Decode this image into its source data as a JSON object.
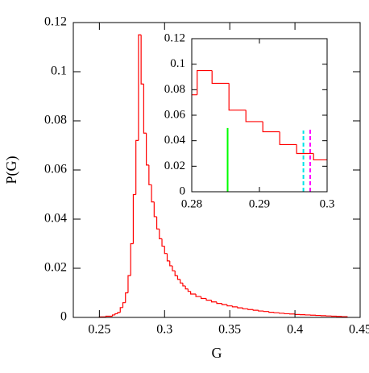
{
  "chart_data": [
    {
      "type": "histogram",
      "x_label": "G",
      "y_label": "P(G)",
      "color": "#ff0000",
      "xlim": [
        0.23,
        0.45
      ],
      "ylim": [
        0,
        0.12
      ],
      "xticks": [
        0.25,
        0.3,
        0.35,
        0.4,
        0.45
      ],
      "yticks": [
        0,
        0.02,
        0.04,
        0.06,
        0.08,
        0.1,
        0.12
      ],
      "bins": [
        0.25,
        0.255,
        0.26,
        0.262,
        0.264,
        0.266,
        0.268,
        0.27,
        0.272,
        0.274,
        0.276,
        0.278,
        0.28,
        0.282,
        0.284,
        0.286,
        0.288,
        0.29,
        0.292,
        0.294,
        0.296,
        0.298,
        0.3,
        0.302,
        0.304,
        0.306,
        0.308,
        0.31,
        0.312,
        0.314,
        0.316,
        0.318,
        0.32,
        0.324,
        0.328,
        0.332,
        0.336,
        0.34,
        0.344,
        0.348,
        0.352,
        0.356,
        0.36,
        0.364,
        0.368,
        0.372,
        0.376,
        0.38,
        0.384,
        0.388,
        0.392,
        0.396,
        0.4,
        0.404,
        0.408,
        0.412,
        0.416,
        0.42,
        0.424,
        0.428,
        0.432,
        0.436,
        0.44
      ],
      "values": [
        0.0002,
        0.0005,
        0.001,
        0.0015,
        0.002,
        0.004,
        0.006,
        0.01,
        0.017,
        0.03,
        0.05,
        0.072,
        0.115,
        0.095,
        0.075,
        0.062,
        0.054,
        0.047,
        0.041,
        0.036,
        0.032,
        0.029,
        0.026,
        0.023,
        0.021,
        0.019,
        0.017,
        0.0155,
        0.014,
        0.0128,
        0.0116,
        0.0106,
        0.0095,
        0.0085,
        0.0077,
        0.007,
        0.0063,
        0.0057,
        0.0052,
        0.0047,
        0.0043,
        0.0039,
        0.0035,
        0.0032,
        0.0029,
        0.0026,
        0.0024,
        0.0021,
        0.0019,
        0.0017,
        0.0015,
        0.0014,
        0.0012,
        0.0011,
        0.001,
        0.0009,
        0.0008,
        0.0007,
        0.0006,
        0.0005,
        0.0004,
        0.0003
      ]
    },
    {
      "type": "histogram",
      "color": "#ff0000",
      "xlim": [
        0.28,
        0.3
      ],
      "ylim": [
        0,
        0.12
      ],
      "xticks": [
        0.28,
        0.29,
        0.3
      ],
      "yticks": [
        0,
        0.02,
        0.04,
        0.06,
        0.08,
        0.1,
        0.12
      ],
      "bins": [
        0.278,
        0.2808,
        0.283,
        0.2855,
        0.288,
        0.2905,
        0.293,
        0.2955,
        0.298,
        0.3005
      ],
      "values": [
        0.076,
        0.095,
        0.085,
        0.064,
        0.055,
        0.047,
        0.037,
        0.03,
        0.025
      ],
      "vlines": [
        {
          "x": 0.2853,
          "height": 0.05,
          "color": "#00ff00",
          "style": "solid"
        },
        {
          "x": 0.2965,
          "height": 0.048,
          "color": "#00e5e5",
          "style": "dashed"
        },
        {
          "x": 0.2975,
          "height": 0.05,
          "color": "#ff00ff",
          "style": "dashed"
        }
      ]
    }
  ]
}
